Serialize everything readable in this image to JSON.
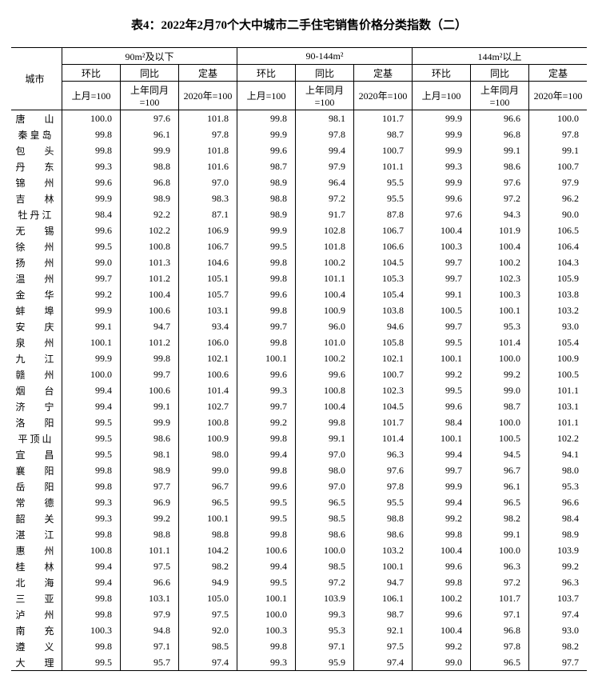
{
  "title": "表4：2022年2月70个大中城市二手住宅销售价格分类指数（二）",
  "header": {
    "city": "城市",
    "group1": "90m²及以下",
    "group2": "90-144m²",
    "group3": "144m²以上",
    "hb": "环比",
    "tb": "同比",
    "dj": "定基",
    "base_month": "上月=100",
    "base_year": "上年同月=100",
    "base_fixed": "2020年=100"
  },
  "rows": [
    {
      "c": "唐　　山",
      "v": [
        "100.0",
        "97.6",
        "101.8",
        "99.8",
        "98.1",
        "101.7",
        "99.9",
        "96.6",
        "100.0"
      ]
    },
    {
      "c": "秦 皇 岛",
      "v": [
        "99.8",
        "96.1",
        "97.8",
        "99.9",
        "97.8",
        "98.7",
        "99.9",
        "96.8",
        "97.8"
      ]
    },
    {
      "c": "包　　头",
      "v": [
        "99.8",
        "99.9",
        "101.8",
        "99.6",
        "99.4",
        "100.7",
        "99.9",
        "99.1",
        "99.1"
      ]
    },
    {
      "c": "丹　　东",
      "v": [
        "99.3",
        "98.8",
        "101.6",
        "98.7",
        "97.9",
        "101.1",
        "99.3",
        "98.6",
        "100.7"
      ]
    },
    {
      "c": "锦　　州",
      "v": [
        "99.6",
        "96.8",
        "97.0",
        "98.9",
        "96.4",
        "95.5",
        "99.9",
        "97.6",
        "97.9"
      ]
    },
    {
      "c": "吉　　林",
      "v": [
        "99.9",
        "98.9",
        "98.3",
        "98.8",
        "97.2",
        "95.5",
        "99.6",
        "97.2",
        "96.2"
      ]
    },
    {
      "c": "牡 丹 江",
      "v": [
        "98.4",
        "92.2",
        "87.1",
        "98.9",
        "91.7",
        "87.8",
        "97.6",
        "94.3",
        "90.0"
      ]
    },
    {
      "c": "无　　锡",
      "v": [
        "99.6",
        "102.2",
        "106.9",
        "99.9",
        "102.8",
        "106.7",
        "100.4",
        "101.9",
        "106.5"
      ]
    },
    {
      "c": "徐　　州",
      "v": [
        "99.5",
        "100.8",
        "106.7",
        "99.5",
        "101.8",
        "106.6",
        "100.3",
        "100.4",
        "106.4"
      ]
    },
    {
      "c": "扬　　州",
      "v": [
        "99.0",
        "101.3",
        "104.6",
        "99.8",
        "100.2",
        "104.5",
        "99.7",
        "100.2",
        "104.3"
      ]
    },
    {
      "c": "温　　州",
      "v": [
        "99.7",
        "101.2",
        "105.1",
        "99.8",
        "101.1",
        "105.3",
        "99.7",
        "102.3",
        "105.9"
      ]
    },
    {
      "c": "金　　华",
      "v": [
        "99.2",
        "100.4",
        "105.7",
        "99.6",
        "100.4",
        "105.4",
        "99.1",
        "100.3",
        "103.8"
      ]
    },
    {
      "c": "蚌　　埠",
      "v": [
        "99.9",
        "100.6",
        "103.1",
        "99.8",
        "100.9",
        "103.8",
        "100.5",
        "100.1",
        "103.2"
      ]
    },
    {
      "c": "安　　庆",
      "v": [
        "99.1",
        "94.7",
        "93.4",
        "99.7",
        "96.0",
        "94.6",
        "99.7",
        "95.3",
        "93.0"
      ]
    },
    {
      "c": "泉　　州",
      "v": [
        "100.1",
        "101.2",
        "106.0",
        "99.8",
        "101.0",
        "105.8",
        "99.5",
        "101.4",
        "105.4"
      ]
    },
    {
      "c": "九　　江",
      "v": [
        "99.9",
        "99.8",
        "102.1",
        "100.1",
        "100.2",
        "102.1",
        "100.1",
        "100.0",
        "100.9"
      ]
    },
    {
      "c": "赣　　州",
      "v": [
        "100.0",
        "99.7",
        "100.6",
        "99.6",
        "99.6",
        "100.7",
        "99.2",
        "99.2",
        "100.5"
      ]
    },
    {
      "c": "烟　　台",
      "v": [
        "99.4",
        "100.6",
        "101.4",
        "99.3",
        "100.8",
        "102.3",
        "99.5",
        "99.0",
        "101.1"
      ]
    },
    {
      "c": "济　　宁",
      "v": [
        "99.4",
        "99.1",
        "102.7",
        "99.7",
        "100.4",
        "104.5",
        "99.6",
        "98.7",
        "103.1"
      ]
    },
    {
      "c": "洛　　阳",
      "v": [
        "99.5",
        "99.9",
        "100.8",
        "99.2",
        "99.8",
        "101.7",
        "98.4",
        "100.0",
        "101.1"
      ]
    },
    {
      "c": "平 顶 山",
      "v": [
        "99.5",
        "98.6",
        "100.9",
        "99.8",
        "99.1",
        "101.4",
        "100.1",
        "100.5",
        "102.2"
      ]
    },
    {
      "c": "宜　　昌",
      "v": [
        "99.5",
        "98.1",
        "98.0",
        "99.4",
        "97.0",
        "96.3",
        "99.4",
        "94.5",
        "94.1"
      ]
    },
    {
      "c": "襄　　阳",
      "v": [
        "99.8",
        "98.9",
        "99.0",
        "99.8",
        "98.0",
        "97.6",
        "99.7",
        "96.7",
        "98.0"
      ]
    },
    {
      "c": "岳　　阳",
      "v": [
        "99.8",
        "97.7",
        "96.7",
        "99.6",
        "97.0",
        "97.8",
        "99.9",
        "96.1",
        "95.3"
      ]
    },
    {
      "c": "常　　德",
      "v": [
        "99.3",
        "96.9",
        "96.5",
        "99.5",
        "96.5",
        "95.5",
        "99.4",
        "96.5",
        "96.6"
      ]
    },
    {
      "c": "韶　　关",
      "v": [
        "99.3",
        "99.2",
        "100.1",
        "99.5",
        "98.5",
        "98.8",
        "99.2",
        "98.2",
        "98.4"
      ]
    },
    {
      "c": "湛　　江",
      "v": [
        "99.8",
        "98.8",
        "98.8",
        "99.8",
        "98.6",
        "98.6",
        "99.8",
        "99.1",
        "98.9"
      ]
    },
    {
      "c": "惠　　州",
      "v": [
        "100.8",
        "101.1",
        "104.2",
        "100.6",
        "100.0",
        "103.2",
        "100.4",
        "100.0",
        "103.9"
      ]
    },
    {
      "c": "桂　　林",
      "v": [
        "99.4",
        "97.5",
        "98.2",
        "99.4",
        "98.5",
        "100.1",
        "99.6",
        "96.3",
        "99.2"
      ]
    },
    {
      "c": "北　　海",
      "v": [
        "99.4",
        "96.6",
        "94.9",
        "99.5",
        "97.2",
        "94.7",
        "99.8",
        "97.2",
        "96.3"
      ]
    },
    {
      "c": "三　　亚",
      "v": [
        "99.8",
        "103.1",
        "105.0",
        "100.1",
        "103.9",
        "106.1",
        "100.2",
        "101.7",
        "103.7"
      ]
    },
    {
      "c": "泸　　州",
      "v": [
        "99.8",
        "97.9",
        "97.5",
        "100.0",
        "99.3",
        "98.7",
        "99.6",
        "97.1",
        "97.4"
      ]
    },
    {
      "c": "南　　充",
      "v": [
        "100.3",
        "94.8",
        "92.0",
        "100.3",
        "95.3",
        "92.1",
        "100.4",
        "96.8",
        "93.0"
      ]
    },
    {
      "c": "遵　　义",
      "v": [
        "99.8",
        "97.1",
        "98.5",
        "99.8",
        "97.1",
        "97.5",
        "99.2",
        "97.8",
        "98.2"
      ]
    },
    {
      "c": "大　　理",
      "v": [
        "99.5",
        "95.7",
        "97.4",
        "99.3",
        "95.9",
        "97.4",
        "99.0",
        "96.5",
        "97.7"
      ]
    }
  ]
}
